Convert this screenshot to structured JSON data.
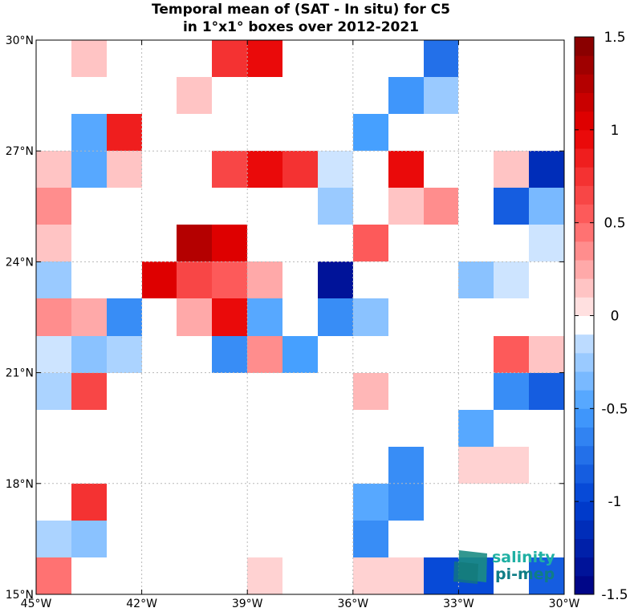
{
  "chart_data": {
    "type": "heatmap",
    "title": [
      "Temporal mean of (SAT - In situ) for C5",
      "in 1°x1° boxes over 2012-2021"
    ],
    "x_range": [
      -45,
      -30
    ],
    "y_range": [
      15,
      30
    ],
    "x_ticks": [
      {
        "value": -45,
        "label": "45°W"
      },
      {
        "value": -42,
        "label": "42°W"
      },
      {
        "value": -39,
        "label": "39°W"
      },
      {
        "value": -36,
        "label": "36°W"
      },
      {
        "value": -33,
        "label": "33°W"
      },
      {
        "value": -30,
        "label": "30°W"
      }
    ],
    "y_ticks": [
      {
        "value": 15,
        "label": "15°N"
      },
      {
        "value": 18,
        "label": "18°N"
      },
      {
        "value": 21,
        "label": "21°N"
      },
      {
        "value": 24,
        "label": "24°N"
      },
      {
        "value": 27,
        "label": "27°N"
      },
      {
        "value": 30,
        "label": "30°N"
      }
    ],
    "grid": true,
    "colorbar": {
      "range": [
        -1.5,
        1.5
      ],
      "levels": 30,
      "ticks": [
        {
          "value": 1.5,
          "label": "1.5"
        },
        {
          "value": 1,
          "label": "1"
        },
        {
          "value": 0.5,
          "label": "0.5"
        },
        {
          "value": 0,
          "label": "0"
        },
        {
          "value": -0.5,
          "label": "-0.5"
        },
        {
          "value": -1,
          "label": "-1"
        },
        {
          "value": -1.5,
          "label": "-1.5"
        }
      ]
    },
    "cells": [
      {
        "lon": -44,
        "lat": 29,
        "value": 0.15
      },
      {
        "lon": -40,
        "lat": 29,
        "value": 0.75
      },
      {
        "lon": -39,
        "lat": 29,
        "value": 0.95
      },
      {
        "lon": -34,
        "lat": 29,
        "value": -0.75
      },
      {
        "lon": -41,
        "lat": 28,
        "value": 0.15
      },
      {
        "lon": -35,
        "lat": 28,
        "value": -0.55
      },
      {
        "lon": -34,
        "lat": 28,
        "value": -0.25
      },
      {
        "lon": -44,
        "lat": 27,
        "value": -0.45
      },
      {
        "lon": -43,
        "lat": 27,
        "value": 0.85
      },
      {
        "lon": -36,
        "lat": 27,
        "value": -0.5
      },
      {
        "lon": -45,
        "lat": 26,
        "value": 0.15
      },
      {
        "lon": -44,
        "lat": 26,
        "value": -0.45
      },
      {
        "lon": -43,
        "lat": 26,
        "value": 0.15
      },
      {
        "lon": -40,
        "lat": 26,
        "value": 0.65
      },
      {
        "lon": -39,
        "lat": 26,
        "value": 0.95
      },
      {
        "lon": -38,
        "lat": 26,
        "value": 0.75
      },
      {
        "lon": -37,
        "lat": 26,
        "value": -0.1
      },
      {
        "lon": -35,
        "lat": 26,
        "value": 0.95
      },
      {
        "lon": -32,
        "lat": 26,
        "value": 0.15
      },
      {
        "lon": -31,
        "lat": 26,
        "value": -1.15
      },
      {
        "lon": -45,
        "lat": 25,
        "value": 0.35
      },
      {
        "lon": -37,
        "lat": 25,
        "value": -0.25
      },
      {
        "lon": -35,
        "lat": 25,
        "value": 0.15
      },
      {
        "lon": -34,
        "lat": 25,
        "value": 0.35
      },
      {
        "lon": -32,
        "lat": 25,
        "value": -0.85
      },
      {
        "lon": -31,
        "lat": 25,
        "value": -0.35
      },
      {
        "lon": -45,
        "lat": 24,
        "value": 0.15
      },
      {
        "lon": -41,
        "lat": 24,
        "value": 1.25
      },
      {
        "lon": -40,
        "lat": 24,
        "value": 1.05
      },
      {
        "lon": -36,
        "lat": 24,
        "value": 0.55
      },
      {
        "lon": -31,
        "lat": 24,
        "value": -0.1
      },
      {
        "lon": -45,
        "lat": 23,
        "value": -0.25
      },
      {
        "lon": -42,
        "lat": 23,
        "value": 1.05
      },
      {
        "lon": -41,
        "lat": 23,
        "value": 0.65
      },
      {
        "lon": -40,
        "lat": 23,
        "value": 0.55
      },
      {
        "lon": -39,
        "lat": 23,
        "value": 0.25
      },
      {
        "lon": -37,
        "lat": 23,
        "value": -1.35
      },
      {
        "lon": -33,
        "lat": 23,
        "value": -0.3
      },
      {
        "lon": -32,
        "lat": 23,
        "value": -0.1
      },
      {
        "lon": -45,
        "lat": 22,
        "value": 0.35
      },
      {
        "lon": -44,
        "lat": 22,
        "value": 0.25
      },
      {
        "lon": -43,
        "lat": 22,
        "value": -0.6
      },
      {
        "lon": -41,
        "lat": 22,
        "value": 0.25
      },
      {
        "lon": -40,
        "lat": 22,
        "value": 0.95
      },
      {
        "lon": -39,
        "lat": 22,
        "value": -0.45
      },
      {
        "lon": -37,
        "lat": 22,
        "value": -0.6
      },
      {
        "lon": -36,
        "lat": 22,
        "value": -0.3
      },
      {
        "lon": -45,
        "lat": 21,
        "value": -0.1
      },
      {
        "lon": -44,
        "lat": 21,
        "value": -0.3
      },
      {
        "lon": -43,
        "lat": 21,
        "value": -0.2
      },
      {
        "lon": -40,
        "lat": 21,
        "value": -0.6
      },
      {
        "lon": -39,
        "lat": 21,
        "value": 0.35
      },
      {
        "lon": -38,
        "lat": 21,
        "value": -0.5
      },
      {
        "lon": -32,
        "lat": 21,
        "value": 0.55
      },
      {
        "lon": -31,
        "lat": 21,
        "value": 0.15
      },
      {
        "lon": -45,
        "lat": 20,
        "value": -0.2
      },
      {
        "lon": -44,
        "lat": 20,
        "value": 0.65
      },
      {
        "lon": -36,
        "lat": 20,
        "value": 0.2
      },
      {
        "lon": -32,
        "lat": 20,
        "value": -0.6
      },
      {
        "lon": -31,
        "lat": 20,
        "value": -0.85
      },
      {
        "lon": -33,
        "lat": 19,
        "value": -0.45
      },
      {
        "lon": -35,
        "lat": 18,
        "value": -0.6
      },
      {
        "lon": -33,
        "lat": 18,
        "value": 0.1
      },
      {
        "lon": -32,
        "lat": 18,
        "value": 0.1
      },
      {
        "lon": -44,
        "lat": 17,
        "value": 0.75
      },
      {
        "lon": -36,
        "lat": 17,
        "value": -0.45
      },
      {
        "lon": -35,
        "lat": 17,
        "value": -0.6
      },
      {
        "lon": -45,
        "lat": 16,
        "value": -0.2
      },
      {
        "lon": -44,
        "lat": 16,
        "value": -0.3
      },
      {
        "lon": -36,
        "lat": 16,
        "value": -0.6
      },
      {
        "lon": -45,
        "lat": 15,
        "value": 0.45
      },
      {
        "lon": -39,
        "lat": 15,
        "value": 0.1
      },
      {
        "lon": -36,
        "lat": 15,
        "value": 0.1
      },
      {
        "lon": -35,
        "lat": 15,
        "value": 0.1
      },
      {
        "lon": -34,
        "lat": 15,
        "value": -0.95
      },
      {
        "lon": -33,
        "lat": 15,
        "value": -0.95
      },
      {
        "lon": -31,
        "lat": 15,
        "value": -0.85
      }
    ]
  },
  "logo": {
    "line1": "salinity",
    "line2": "pi-mep"
  }
}
